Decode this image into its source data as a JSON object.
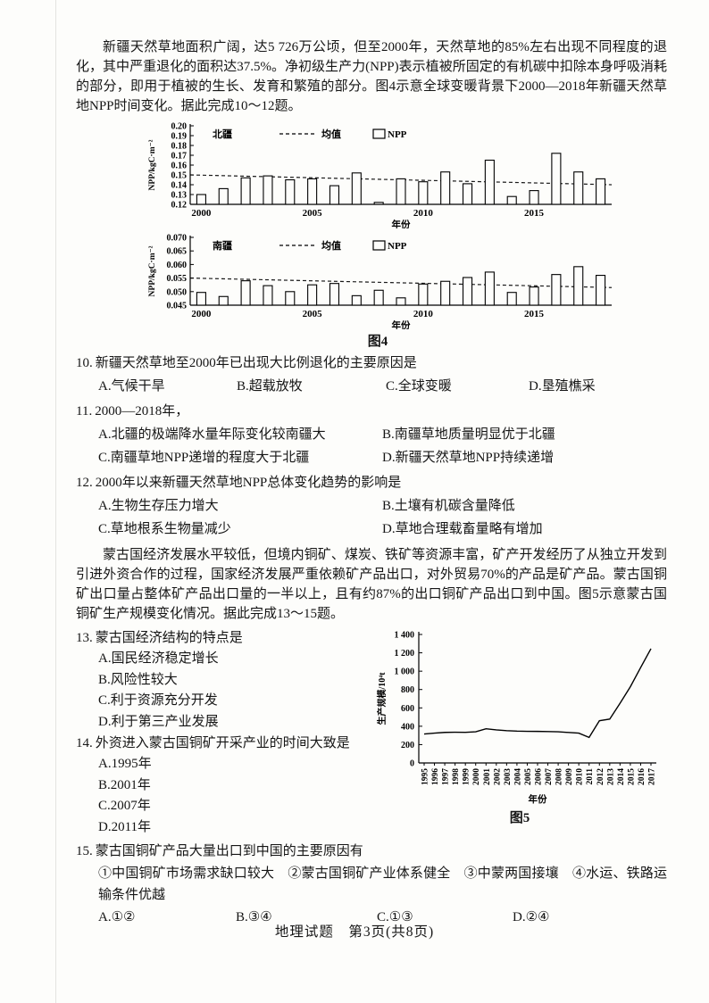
{
  "page": {
    "footer": "地理试题　第3页(共8页)"
  },
  "passages": {
    "p1": "新疆天然草地面积广阔，达5 726万公顷，但至2000年，天然草地的85%左右出现不同程度的退化，其中严重退化的面积达37.5%。净初级生产力(NPP)表示植被所固定的有机碳中扣除本身呼吸消耗的部分，即用于植被的生长、发育和繁殖的部分。图4示意全球变暖背景下2000—2018年新疆天然草地NPP时间变化。据此完成10～12题。",
    "p2": "蒙古国经济发展水平较低，但境内铜矿、煤炭、铁矿等资源丰富，矿产开发经历了从独立开发到引进外资合作的过程，国家经济发展严重依赖矿产品出口，对外贸易70%的产品是矿产品。蒙古国铜矿出口量占整体矿产品出口量的一半以上，且有约87%的出口铜矿产品出口到中国。图5示意蒙古国铜矿生产规模变化情况。据此完成13～15题。"
  },
  "figures": {
    "fig4_caption": "图4",
    "fig5_caption": "图5"
  },
  "questions": {
    "q10": {
      "number": "10.",
      "stem": "新疆天然草地至2000年已出现大比例退化的主要原因是",
      "options": [
        "A.气候干旱",
        "B.超载放牧",
        "C.全球变暖",
        "D.垦殖樵采"
      ]
    },
    "q11": {
      "number": "11.",
      "stem": "2000—2018年，",
      "options": [
        "A.北疆的极端降水量年际变化较南疆大",
        "B.南疆草地质量明显优于北疆",
        "C.南疆草地NPP递增的程度大于北疆",
        "D.新疆天然草地NPP持续递增"
      ]
    },
    "q12": {
      "number": "12.",
      "stem": "2000年以来新疆天然草地NPP总体变化趋势的影响是",
      "options": [
        "A.生物生存压力增大",
        "B.土壤有机碳含量降低",
        "C.草地根系生物量减少",
        "D.草地合理载畜量略有增加"
      ]
    },
    "q13": {
      "number": "13.",
      "stem": "蒙古国经济结构的特点是",
      "options": [
        "A.国民经济稳定增长",
        "B.风险性较大",
        "C.利于资源充分开发",
        "D.利于第三产业发展"
      ]
    },
    "q14": {
      "number": "14.",
      "stem": "外资进入蒙古国铜矿开采产业的时间大致是",
      "options": [
        "A.1995年",
        "B.2001年",
        "C.2007年",
        "D.2011年"
      ]
    },
    "q15": {
      "number": "15.",
      "stem": "蒙古国铜矿产品大量出口到中国的主要原因有",
      "sub_options": "①中国铜矿市场需求缺口较大　②蒙古国铜矿产业体系健全　③中蒙两国接壤　④水运、铁路运输条件优越",
      "options": [
        "A.①②",
        "B.③④",
        "C.①③",
        "D.②④"
      ]
    }
  },
  "chart_data": [
    {
      "type": "bar",
      "region_label": "北疆",
      "legend_mean": "均值",
      "legend_bar": "NPP",
      "ylabel": "NPP/kgC·m⁻²",
      "xlabel": "年份",
      "ylim": [
        0.12,
        0.2
      ],
      "ytick_labels": [
        "0.12",
        "0.13",
        "0.14",
        "0.15",
        "0.16",
        "0.17",
        "0.18",
        "0.19",
        "0.20"
      ],
      "xtick_years": [
        2000,
        2005,
        2010,
        2015
      ],
      "years": [
        2000,
        2001,
        2002,
        2003,
        2004,
        2005,
        2006,
        2007,
        2008,
        2009,
        2010,
        2011,
        2012,
        2013,
        2014,
        2015,
        2016,
        2017,
        2018
      ],
      "values": [
        0.13,
        0.136,
        0.147,
        0.149,
        0.145,
        0.146,
        0.139,
        0.152,
        0.122,
        0.146,
        0.143,
        0.153,
        0.141,
        0.165,
        0.128,
        0.134,
        0.172,
        0.153,
        0.146
      ],
      "mean_line": {
        "left": 0.15,
        "right": 0.14
      },
      "grid": false
    },
    {
      "type": "bar",
      "region_label": "南疆",
      "legend_mean": "均值",
      "legend_bar": "NPP",
      "ylabel": "NPP/kgC·m⁻²",
      "xlabel": "年份",
      "ylim": [
        0.045,
        0.07
      ],
      "ytick_labels": [
        "0.045",
        "0.050",
        "0.055",
        "0.060",
        "0.065",
        "0.070"
      ],
      "xtick_years": [
        2000,
        2005,
        2010,
        2015
      ],
      "years": [
        2000,
        2001,
        2002,
        2003,
        2004,
        2005,
        2006,
        2007,
        2008,
        2009,
        2010,
        2011,
        2012,
        2013,
        2014,
        2015,
        2016,
        2017,
        2018
      ],
      "values": [
        0.0497,
        0.0482,
        0.054,
        0.0522,
        0.05,
        0.0525,
        0.053,
        0.0485,
        0.0505,
        0.0477,
        0.0528,
        0.0538,
        0.0552,
        0.0572,
        0.0497,
        0.0517,
        0.0563,
        0.0592,
        0.056
      ],
      "mean_line": {
        "left": 0.055,
        "right": 0.0515
      },
      "grid": false
    },
    {
      "type": "line",
      "ylabel": "生产规模/10⁴t",
      "xlabel": "年份",
      "ylim": [
        0,
        1400
      ],
      "ytick_labels": [
        "0",
        "200",
        "400",
        "600",
        "800",
        "1 000",
        "1 200",
        "1 400"
      ],
      "years": [
        1995,
        1996,
        1997,
        1998,
        1999,
        2000,
        2001,
        2002,
        2003,
        2004,
        2005,
        2006,
        2007,
        2008,
        2009,
        2010,
        2011,
        2012,
        2013,
        2014,
        2015,
        2016,
        2017
      ],
      "values": [
        315,
        325,
        333,
        335,
        334,
        340,
        372,
        360,
        352,
        347,
        345,
        344,
        342,
        340,
        332,
        325,
        278,
        460,
        478,
        650,
        830,
        1040,
        1245
      ],
      "grid": false
    }
  ]
}
